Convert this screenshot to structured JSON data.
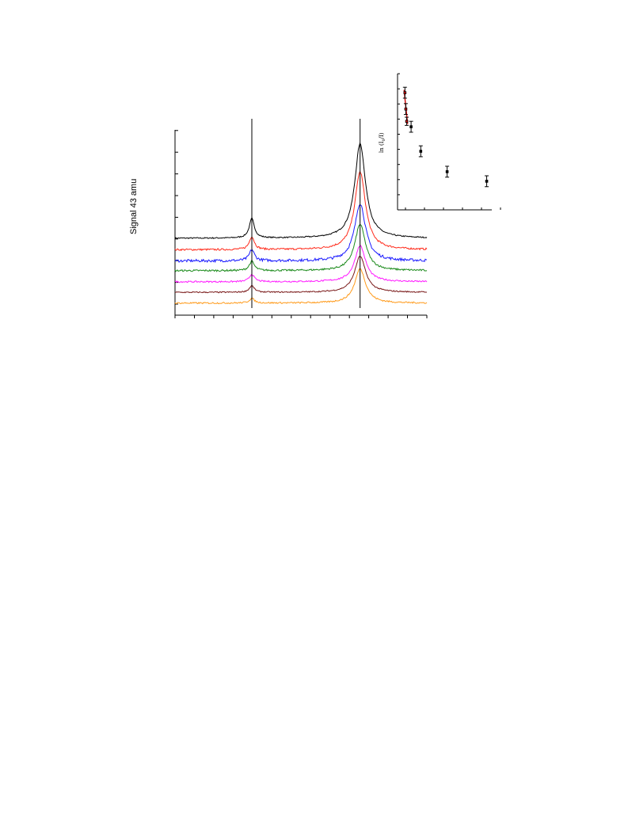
{
  "chart_data": [
    {
      "type": "line",
      "title": "",
      "xlabel": "",
      "ylabel": "Signal 43 amu",
      "xlim": [
        0,
        100
      ],
      "ylim": [
        0,
        100
      ],
      "grid": false,
      "legend": "none",
      "tick_labels": "none",
      "peaks": [
        {
          "name": "peak-1",
          "x": 30.5
        },
        {
          "name": "peak-2",
          "x": 73.5
        }
      ],
      "series": [
        {
          "color": "#000000",
          "offset": 41.5,
          "peak1": 10.5,
          "peak2": 51.0,
          "noise": 0.4
        },
        {
          "color": "#ff2a1a",
          "offset": 35.3,
          "peak1": 7.0,
          "peak2": 42.0,
          "noise": 0.6
        },
        {
          "color": "#1a1aff",
          "offset": 29.3,
          "peak1": 6.0,
          "peak2": 31.0,
          "noise": 0.9
        },
        {
          "color": "#1a8a1a",
          "offset": 24.0,
          "peak1": 5.0,
          "peak2": 25.0,
          "noise": 0.6
        },
        {
          "color": "#ff1aff",
          "offset": 18.0,
          "peak1": 4.0,
          "peak2": 19.5,
          "noise": 0.5
        },
        {
          "color": "#7a1a1a",
          "offset": 12.3,
          "peak1": 3.5,
          "peak2": 19.5,
          "noise": 0.4
        },
        {
          "color": "#ff9a1a",
          "offset": 6.5,
          "peak1": 2.5,
          "peak2": 18.5,
          "noise": 0.5
        }
      ]
    },
    {
      "type": "scatter",
      "title": "",
      "xlabel": "",
      "ylabel": "ln (I",
      "ylabel_sub": "0",
      "ylabel_tail": "/I)",
      "xlim": [
        0,
        100
      ],
      "ylim": [
        0,
        100
      ],
      "grid": false,
      "tick_labels": "none",
      "points": [
        {
          "x": 3,
          "y": 86,
          "err": 4,
          "color": "#cc0000"
        },
        {
          "x": 4,
          "y": 74,
          "err": 4,
          "color": "#cc0000"
        },
        {
          "x": 5,
          "y": 65,
          "err": 3,
          "color": "#cc0000"
        },
        {
          "x": 10,
          "y": 61,
          "err": 4,
          "color": "#000000"
        },
        {
          "x": 21,
          "y": 43,
          "err": 4,
          "color": "#000000"
        },
        {
          "x": 51,
          "y": 28,
          "err": 4,
          "color": "#000000"
        },
        {
          "x": 96,
          "y": 21,
          "err": 4,
          "color": "#000000"
        }
      ],
      "fit_line": {
        "x": [
          2,
          6
        ],
        "y": [
          88,
          63
        ],
        "color": "#cc0000"
      }
    }
  ]
}
